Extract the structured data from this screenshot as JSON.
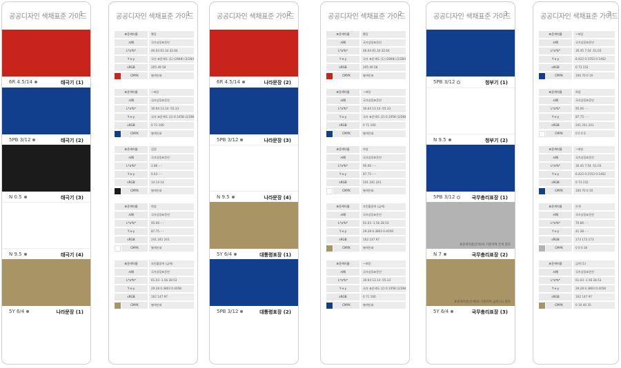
{
  "cards": [
    {
      "type": "swatch",
      "title": "공공디자인 색채표준 가이드",
      "num": "1",
      "items": [
        {
          "color": "#c8241c",
          "code": "6R 4.5/14",
          "mark": "dot",
          "name": "태극기 (1)"
        },
        {
          "color": "#123e8e",
          "code": "5PB 3/12",
          "mark": "dot",
          "name": "태극기 (2)"
        },
        {
          "color": "#1b1b1b",
          "code": "N 0.5",
          "mark": "dot",
          "name": "태극기 (3)"
        },
        {
          "color": "#ffffff",
          "code": "N 9.5",
          "mark": "dot",
          "name": "태극기 (4)"
        },
        {
          "color": "#a89465",
          "code": "5Y 6/4",
          "mark": "dot",
          "name": "나라문장 (1)"
        }
      ]
    },
    {
      "type": "table",
      "title": "공공디자인 색채표준 가이드",
      "num": "1",
      "items": [
        {
          "chip": "#c8241c",
          "rows": [
            [
              "표준색이름",
              "빨강"
            ],
            [
              "서예",
              "국가상징표준안"
            ],
            [
              "L*a*b*",
              "46.04  61.34  32.64"
            ],
            [
              "Y·x·y",
              "국가 표준색도 (1) (2848) (2/284)"
            ],
            [
              "sRGB",
              "205  49  58"
            ],
            [
              "CMYK",
              "별색인쇄"
            ]
          ]
        },
        {
          "chip": "#123e8e",
          "rows": [
            [
              "표준색이름",
              "~파랑"
            ],
            [
              "서예",
              "국가상징표준안"
            ],
            [
              "L*a*b*",
              "30.64  13.14  -55.33"
            ],
            [
              "Y·x·y",
              "국가 표준색도 (2) 0.1058 (2/284)"
            ],
            [
              "sRGB",
              "0  71  160"
            ],
            [
              "CMYK",
              "별색인쇄"
            ]
          ]
        },
        {
          "chip": "#1b1b1b",
          "rows": [
            [
              "표준색이름",
              "검정"
            ],
            [
              "서예",
              "국가상징표준안"
            ],
            [
              "L*a*b*",
              "2.86  –  –"
            ],
            [
              "Y·x·y",
              "0.43  –  –"
            ],
            [
              "sRGB",
              "14  14  14"
            ],
            [
              "CMYK",
              "별색인쇄"
            ]
          ]
        },
        {
          "chip": "#ffffff",
          "rows": [
            [
              "표준색이름",
              "하양"
            ],
            [
              "서예",
              "국가상징표준안"
            ],
            [
              "L*a*b*",
              "95.06  –  –"
            ],
            [
              "Y·x·y",
              "87.75  –  –"
            ],
            [
              "sRGB",
              "241  241  241"
            ],
            [
              "CMYK",
              "별색인쇄"
            ]
          ]
        },
        {
          "chip": "#a89465",
          "rows": [
            [
              "표준색이름",
              "흐린황갈색 (금색)"
            ],
            [
              "서예",
              "국가상징표준안"
            ],
            [
              "L*a*b*",
              "61.03  -1.56  28.53"
            ],
            [
              "Y·x·y",
              "29.28  0.3803  0.4058"
            ],
            [
              "sRGB",
              "162  147  97"
            ],
            [
              "CMYK",
              "별색인쇄"
            ]
          ]
        }
      ]
    },
    {
      "type": "swatch",
      "title": "공공디자인 색채표준 가이드",
      "num": "2",
      "items": [
        {
          "color": "#c8241c",
          "code": "6R 4.5/14",
          "mark": "dot",
          "name": "나라문장 (2)"
        },
        {
          "color": "#123e8e",
          "code": "5PB 3/12",
          "mark": "dot",
          "name": "나라문장 (3)"
        },
        {
          "color": "#ffffff",
          "code": "N 9.5",
          "mark": "dot",
          "name": "나라문장 (4)"
        },
        {
          "color": "#a89465",
          "code": "5Y 6/4",
          "mark": "dot",
          "name": "대통령표장 (1)"
        },
        {
          "color": "#123e8e",
          "code": "5PB 3/12",
          "mark": "dot",
          "name": "대통령표장 (2)"
        }
      ]
    },
    {
      "type": "table",
      "title": "공공디자인 색채표준 가이드",
      "num": "2",
      "items": [
        {
          "chip": "#c8241c",
          "rows": [
            [
              "표준색이름",
              "빨강"
            ],
            [
              "서예",
              "국가상징표준안"
            ],
            [
              "L*a*b*",
              "46.04  61.34  32.64"
            ],
            [
              "Y·x·y",
              "국가 표준색도 (1) (2848) (2/284)"
            ],
            [
              "sRGB",
              "205  49  58"
            ],
            [
              "CMYK",
              "별색인쇄"
            ]
          ]
        },
        {
          "chip": "#123e8e",
          "rows": [
            [
              "표준색이름",
              "~파랑"
            ],
            [
              "서예",
              "국가상징표준안"
            ],
            [
              "L*a*b*",
              "30.64  13.14  -55.33"
            ],
            [
              "Y·x·y",
              "국가 표준색도 (2) 0.1058 (2/284)"
            ],
            [
              "sRGB",
              "0  71  160"
            ],
            [
              "CMYK",
              "별색인쇄"
            ]
          ]
        },
        {
          "chip": "#ffffff",
          "rows": [
            [
              "표준색이름",
              "하양"
            ],
            [
              "서예",
              "국가상징표준안"
            ],
            [
              "L*a*b*",
              "95.06  –  –"
            ],
            [
              "Y·x·y",
              "87.75  –  –"
            ],
            [
              "sRGB",
              "241  241  241"
            ],
            [
              "CMYK",
              "별색인쇄"
            ]
          ]
        },
        {
          "chip": "#a89465",
          "rows": [
            [
              "표준색이름",
              "흐린황갈색 (금색)"
            ],
            [
              "서예",
              "국가상징표준안"
            ],
            [
              "L*a*b*",
              "61.03  -1.56  28.53"
            ],
            [
              "Y·x·y",
              "29.28  0.3803  0.4058"
            ],
            [
              "sRGB",
              "162  147  97"
            ],
            [
              "CMYK",
              "별색인쇄"
            ]
          ]
        },
        {
          "chip": "#123e8e",
          "rows": [
            [
              "표준색이름",
              "~파랑"
            ],
            [
              "서예",
              "국가상징표준안"
            ],
            [
              "L*a*b*",
              "30.64  13.14  -55.33"
            ],
            [
              "Y·x·y",
              "국가 표준색도 (2) 0.1058 (2/284)"
            ],
            [
              "sRGB",
              "0  71  160"
            ],
            [
              "CMYK",
              "별색인쇄"
            ]
          ]
        }
      ]
    },
    {
      "type": "swatch",
      "title": "공공디자인 색채표준 가이드",
      "num": "3",
      "items": [
        {
          "color": "#123e8e",
          "code": "5PB 3/12",
          "mark": "ring",
          "name": "청부기 (1)"
        },
        {
          "color": "#ffffff",
          "code": "N 9.5",
          "mark": "dot",
          "name": "청부기 (2)"
        },
        {
          "color": "#123e8e",
          "code": "5PB 3/12",
          "mark": "ring",
          "name": "국무총리표장 (1)"
        },
        {
          "color": "#b3b3b3",
          "code": "N 7",
          "mark": "dot",
          "name": "국무총리표장 (2)",
          "note": "표준색이름(은색)의 기준하여 은색 참조"
        },
        {
          "color": "#a89465",
          "code": "5Y 6/4",
          "mark": "dot",
          "name": "국무총리표장 (3)",
          "note": "표준색이름(은색)의 기준하여 금색 (1) 참조"
        }
      ]
    },
    {
      "type": "table",
      "title": "공공디자인 색채표준 가이드",
      "num": "3",
      "items": [
        {
          "chip": "#123e8e",
          "rows": [
            [
              "표준색이름",
              "~파랑"
            ],
            [
              "서예",
              "국가상징표준안"
            ],
            [
              "L*a*b*",
              "30.45  7.54  -51.03"
            ],
            [
              "Y·x·y",
              "6.422  0.1553  0.1462"
            ],
            [
              "sRGB",
              "0  73  152"
            ],
            [
              "CMYK",
              "100  70  0  10"
            ]
          ]
        },
        {
          "chip": "#ffffff",
          "rows": [
            [
              "표준색이름",
              "하양"
            ],
            [
              "서예",
              "국가상징표준안"
            ],
            [
              "L*a*b*",
              "95.06  –  –"
            ],
            [
              "Y·x·y",
              "87.75  –  –"
            ],
            [
              "sRGB",
              "241  241  241"
            ],
            [
              "CMYK",
              "0  0  0  0"
            ]
          ]
        },
        {
          "chip": "#123e8e",
          "rows": [
            [
              "표준색이름",
              "~파랑"
            ],
            [
              "서예",
              "국가상징표준안"
            ],
            [
              "L*a*b*",
              "30.45  7.54  -51.03"
            ],
            [
              "Y·x·y",
              "6.422  0.1553  0.1462"
            ],
            [
              "sRGB",
              "0  73  152"
            ],
            [
              "CMYK",
              "100  70  0  10"
            ]
          ]
        },
        {
          "chip": "#b3b3b3",
          "rows": [
            [
              "표준색이름",
              "은색"
            ],
            [
              "서예",
              "국가상징표준안"
            ],
            [
              "L*a*b*",
              "70.86  –  –"
            ],
            [
              "Y·x·y",
              "41.38  –  –"
            ],
            [
              "sRGB",
              "173  173  173"
            ],
            [
              "CMYK",
              "0  0  0  30"
            ]
          ]
        },
        {
          "chip": "#a89465",
          "rows": [
            [
              "표준색이름",
              "금색 (1)"
            ],
            [
              "서예",
              "국가상징표준안"
            ],
            [
              "L*a*b*",
              "61.03  -1.56  28.53"
            ],
            [
              "Y·x·y",
              "29.28  0.3803  0.4058"
            ],
            [
              "sRGB",
              "162  147  97"
            ],
            [
              "CMYK",
              "0  10  40  35"
            ]
          ]
        }
      ]
    }
  ]
}
